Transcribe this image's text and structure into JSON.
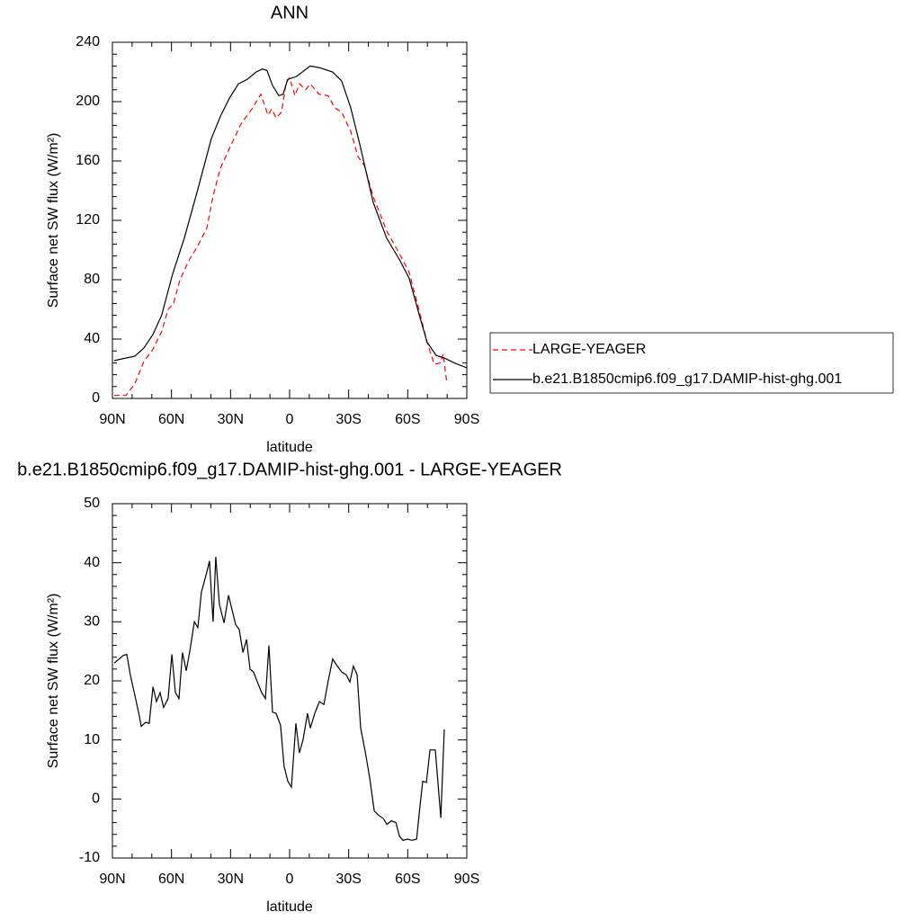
{
  "chart_data": [
    {
      "type": "line",
      "title": "ANN",
      "x_label": "latitude",
      "y_label": "Surface net SW flux (W/m²)",
      "xlim": [
        90,
        -90
      ],
      "xticks": [
        {
          "value": 90,
          "label": "90N"
        },
        {
          "value": 60,
          "label": "60N"
        },
        {
          "value": 30,
          "label": "30N"
        },
        0,
        {
          "value": -30,
          "label": "30S"
        },
        {
          "value": -60,
          "label": "60S"
        },
        {
          "value": -90,
          "label": "90S"
        }
      ],
      "ylim": [
        0,
        240
      ],
      "yticks": [
        0,
        40,
        80,
        120,
        160,
        200,
        240
      ],
      "legend": "outside right",
      "series": [
        {
          "name": "LARGE-YEAGER",
          "color": "#ff0000",
          "dash": true,
          "x": [
            89.1,
            83.2,
            78.6,
            74.0,
            69.5,
            65.0,
            61.7,
            59.0,
            55.7,
            51.1,
            46.6,
            42.0,
            38.8,
            35.2,
            30.7,
            24.7,
            19.2,
            14.6,
            11.0,
            9.1,
            6.8,
            4.1,
            1.8,
            0.0,
            -2.7,
            -5.0,
            -8.2,
            -10.4,
            -15.0,
            -19.6,
            -22.8,
            -26.4,
            -31.0,
            -34.7,
            -37.9,
            -42.5,
            -49.3,
            -56.0,
            -60.7,
            -65.3,
            -69.8,
            -73.5,
            -76.7,
            -78.0,
            -79.9
          ],
          "values": [
            2,
            2,
            10,
            25,
            33,
            45,
            60,
            64,
            80,
            93,
            103,
            115,
            137,
            155,
            168,
            185,
            195,
            205,
            191,
            195,
            189,
            193,
            213,
            216,
            204,
            212,
            208,
            212,
            205,
            204,
            196,
            193,
            180,
            163,
            157,
            136,
            113,
            97,
            85,
            62,
            38,
            23,
            24,
            30,
            10
          ]
        },
        {
          "name": "b.e21.B1850cmip6.f09_g17.DAMIP-hist-ghg.001",
          "color": "#000000",
          "dash": false,
          "x": [
            89.1,
            78.6,
            74.0,
            69.5,
            65.0,
            59.4,
            53.5,
            46.6,
            39.8,
            35.2,
            30.7,
            26.0,
            21.5,
            17.0,
            13.8,
            11.5,
            8.7,
            5.5,
            3.3,
            1.0,
            -3.6,
            -10.4,
            -15.0,
            -21.8,
            -26.4,
            -31.0,
            -35.6,
            -42.5,
            -49.3,
            -56.0,
            -60.7,
            -65.3,
            -69.8,
            -74.4,
            -79.0,
            -83.6,
            -90.0
          ],
          "values": [
            25.5,
            28.5,
            34,
            43,
            56,
            84,
            108,
            141,
            175,
            190,
            202,
            212,
            215,
            220,
            222,
            221,
            211,
            204,
            205,
            215,
            217,
            224,
            223,
            220,
            214,
            196,
            171.5,
            132,
            108,
            93,
            81,
            59,
            38,
            29,
            27,
            24,
            20.6
          ]
        }
      ]
    },
    {
      "type": "line",
      "title": "b.e21.B1850cmip6.f09_g17.DAMIP-hist-ghg.001 - LARGE-YEAGER",
      "x_label": "latitude",
      "y_label": "Surface net SW flux (W/m²)",
      "xlim": [
        90,
        -90
      ],
      "xticks": [
        {
          "value": 90,
          "label": "90N"
        },
        {
          "value": 60,
          "label": "60N"
        },
        {
          "value": 30,
          "label": "30N"
        },
        0,
        {
          "value": -30,
          "label": "30S"
        },
        {
          "value": -60,
          "label": "60S"
        },
        {
          "value": -90,
          "label": "90S"
        }
      ],
      "ylim": [
        -10,
        50
      ],
      "yticks": [
        -10,
        0,
        10,
        20,
        30,
        40,
        50
      ],
      "series": [
        {
          "color": "#000000",
          "dash": false,
          "x": [
            89.1,
            84.5,
            82.7,
            80.9,
            78.6,
            76.3,
            75.4,
            73.1,
            71.3,
            69.4,
            67.6,
            65.8,
            64.0,
            61.7,
            59.8,
            58.0,
            56.2,
            54.4,
            52.5,
            50.7,
            48.4,
            46.6,
            44.8,
            42.0,
            40.7,
            38.9,
            37.5,
            35.7,
            33.3,
            31.0,
            27.4,
            25.6,
            23.7,
            21.9,
            20.1,
            18.3,
            16.0,
            14.2,
            12.3,
            10.5,
            8.7,
            6.9,
            4.6,
            2.8,
            0.9,
            -0.9,
            -3.2,
            -5.0,
            -6.8,
            -9.1,
            -10.5,
            -12.8,
            -15.1,
            -17.4,
            -19.6,
            -21.9,
            -24.2,
            -26.5,
            -28.8,
            -30.6,
            -32.4,
            -34.3,
            -36.1,
            -38.4,
            -40.7,
            -43.0,
            -45.3,
            -47.6,
            -49.4,
            -51.7,
            -54.0,
            -55.8,
            -57.6,
            -59.9,
            -62.2,
            -64.5,
            -66.3,
            -67.6,
            -69.5,
            -71.3,
            -74.0,
            -76.8,
            -78.6
          ],
          "values": [
            23,
            24.3,
            24.5,
            21,
            17.5,
            14,
            12.3,
            13,
            12.8,
            19,
            16.5,
            18,
            15.5,
            17,
            24.5,
            18,
            17,
            24.8,
            21.7,
            25,
            30,
            29,
            35,
            38.5,
            40.3,
            30,
            41,
            33,
            29.8,
            34.5,
            29.5,
            28.7,
            24.8,
            27,
            22,
            21.5,
            19.5,
            18,
            17,
            26,
            14.7,
            14.5,
            12.5,
            5.5,
            3,
            2,
            12.8,
            7.8,
            10,
            14.5,
            12,
            14.5,
            16.5,
            16,
            20,
            23.7,
            22.5,
            21.5,
            21,
            19.8,
            22.5,
            21,
            12,
            8,
            3.5,
            -2,
            -2.8,
            -3.3,
            -4.3,
            -3.7,
            -4,
            -6.3,
            -7,
            -6.8,
            -7,
            -6.8,
            -1,
            3,
            2.8,
            8.3,
            8.3,
            -3.2,
            11.8
          ]
        }
      ]
    }
  ]
}
